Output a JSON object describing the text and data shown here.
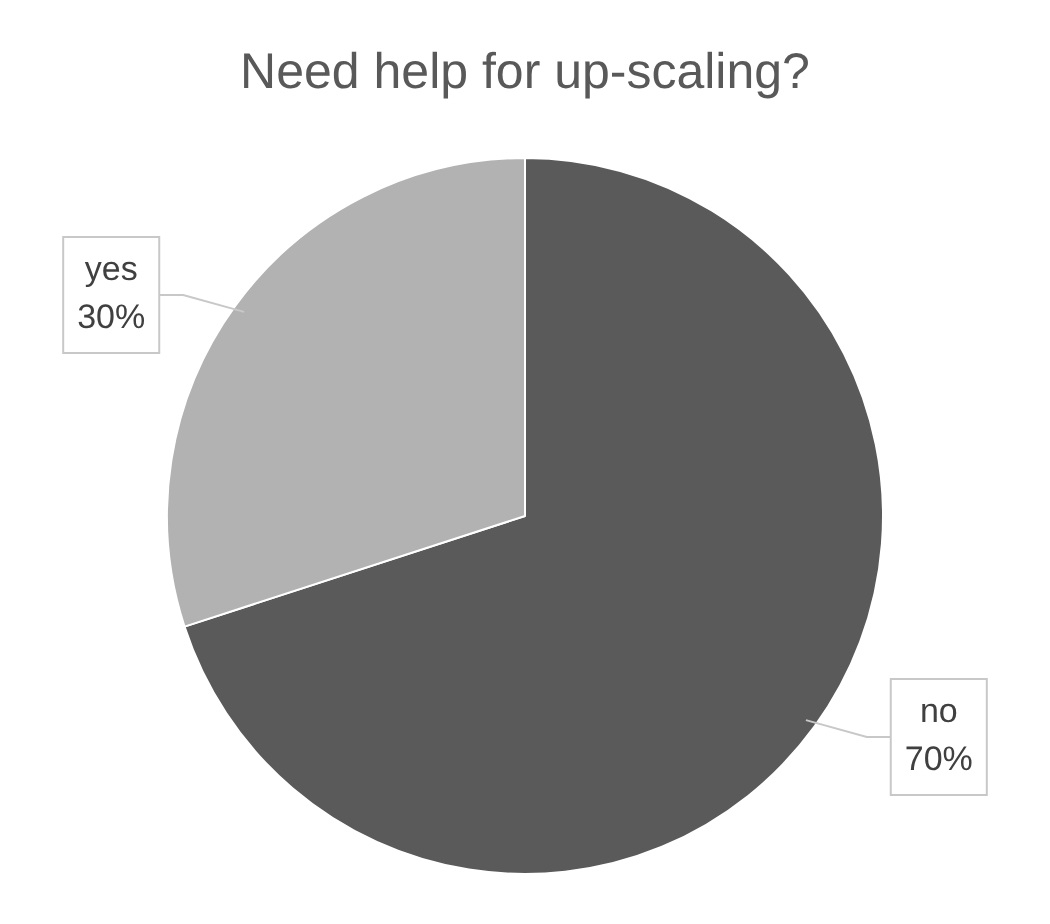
{
  "chart_data": {
    "type": "pie",
    "title": "Need help for up-scaling?",
    "categories": [
      "no",
      "yes"
    ],
    "values": [
      70,
      30
    ],
    "colors": [
      "#5a5a5a",
      "#b2b2b2"
    ],
    "value_labels": [
      "70%",
      "30%"
    ],
    "legend": false
  }
}
